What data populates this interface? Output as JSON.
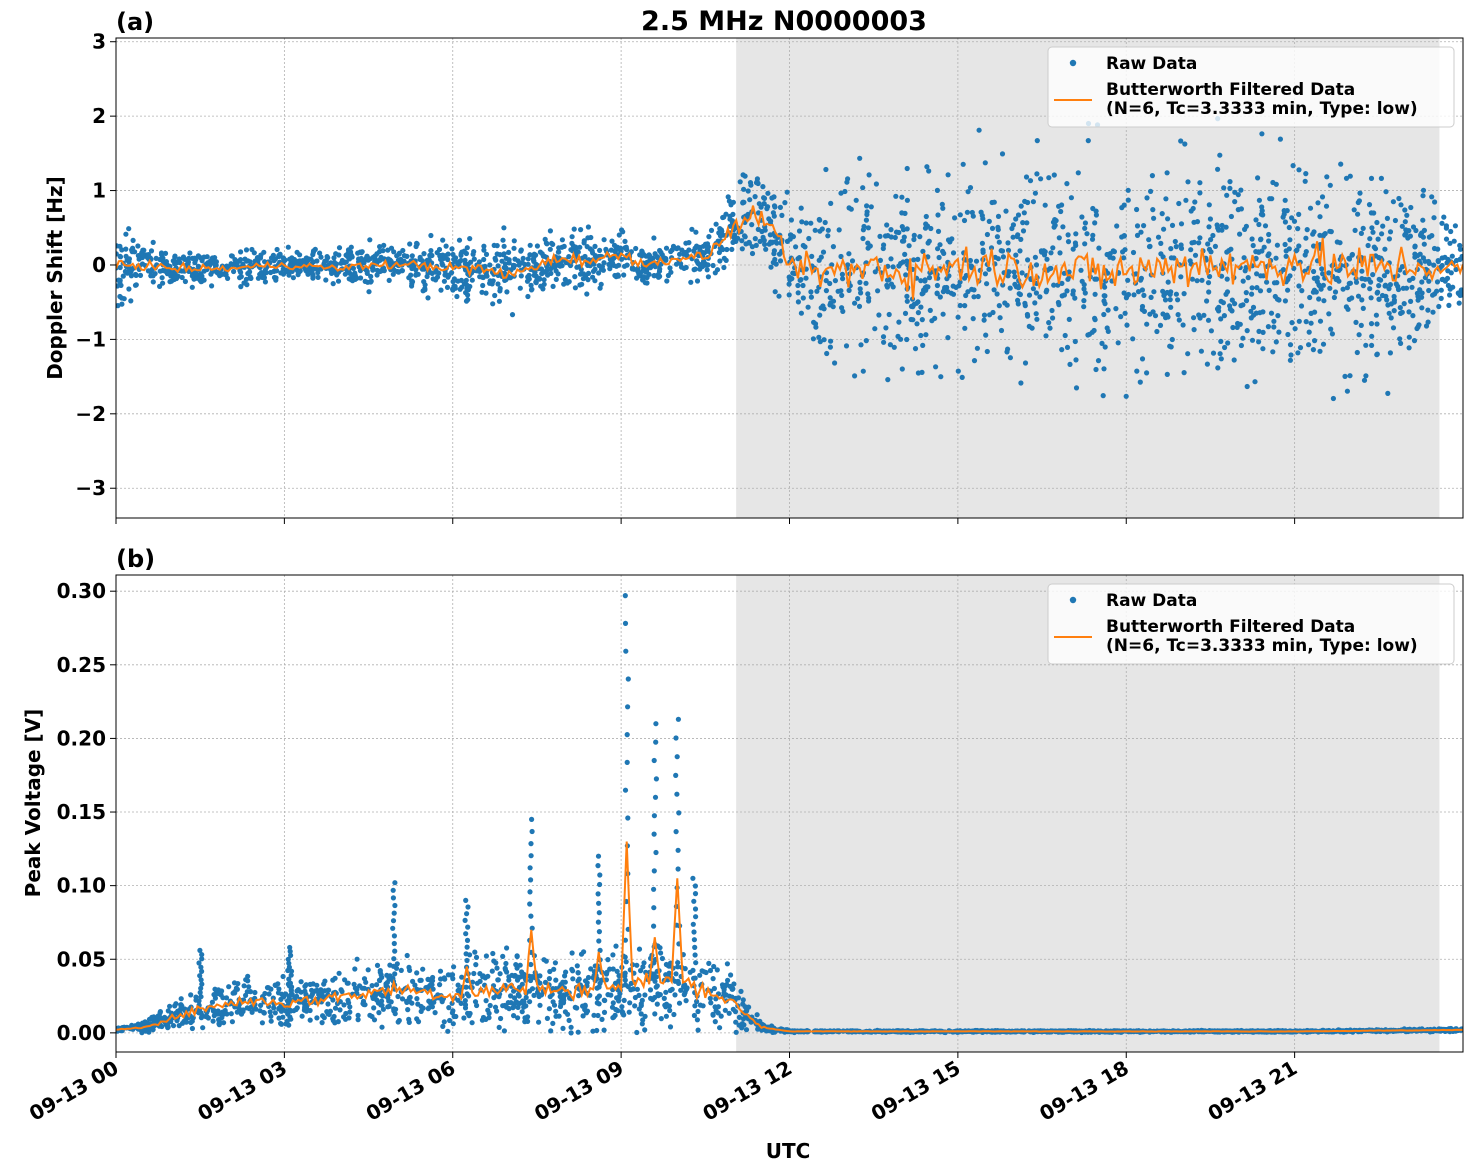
{
  "title": "2.5 MHz N0000003",
  "colors": {
    "raw": "#1f77b4",
    "filtered": "#ff7f0e",
    "shade": "#e6e6e6",
    "grid": "#b0b0b0"
  },
  "chart_data": [
    {
      "type": "scatter",
      "panel_label": "(a)",
      "ylabel": "Doppler Shift [Hz]",
      "xlabel": "",
      "xlim": [
        0,
        24
      ],
      "ylim": [
        -3.4,
        3.05
      ],
      "yticks": [
        -3,
        -2,
        -1,
        0,
        1,
        2,
        3
      ],
      "ytick_labels": [
        "−3",
        "−2",
        "−1",
        "0",
        "1",
        "2",
        "3"
      ],
      "grid": true,
      "legend_position": "top-right",
      "shaded_region_utc_hours": [
        11.05,
        23.58
      ],
      "series": [
        {
          "name": "Raw Data",
          "kind": "scatter",
          "x_utc_hours": [
            0,
            0.5,
            1,
            1.5,
            2,
            2.5,
            3,
            3.5,
            4,
            4.5,
            5,
            5.5,
            6,
            6.5,
            7,
            7.5,
            8,
            8.5,
            9,
            9.5,
            10,
            10.5,
            11,
            11.5,
            12,
            12.5,
            13,
            13.5,
            14,
            14.5,
            15,
            15.5,
            16,
            16.5,
            17,
            17.5,
            18,
            18.5,
            19,
            19.5,
            20,
            20.5,
            21,
            21.5,
            22,
            22.5,
            23,
            23.5,
            24
          ],
          "center": [
            0.0,
            0.0,
            -0.05,
            -0.05,
            -0.05,
            -0.02,
            0.0,
            -0.02,
            -0.05,
            0.0,
            0.0,
            0.0,
            -0.05,
            -0.05,
            -0.15,
            0.0,
            0.1,
            0.05,
            0.15,
            0.0,
            0.1,
            0.1,
            0.5,
            0.7,
            0.0,
            -0.1,
            -0.1,
            0.0,
            -0.1,
            -0.05,
            0.0,
            0.0,
            -0.05,
            -0.05,
            -0.1,
            -0.1,
            -0.1,
            -0.05,
            0.0,
            0.05,
            -0.05,
            0.0,
            0.05,
            0.0,
            -0.05,
            -0.05,
            0.0,
            -0.05,
            -0.05
          ],
          "spread": [
            0.5,
            0.25,
            0.2,
            0.2,
            0.2,
            0.2,
            0.2,
            0.2,
            0.2,
            0.25,
            0.2,
            0.3,
            0.3,
            0.35,
            0.4,
            0.3,
            0.35,
            0.3,
            0.35,
            0.25,
            0.25,
            0.3,
            0.45,
            0.5,
            0.6,
            0.9,
            1.3,
            1.2,
            1.2,
            1.2,
            1.2,
            1.2,
            1.1,
            1.1,
            1.2,
            1.3,
            1.2,
            1.1,
            1.3,
            1.3,
            1.3,
            1.3,
            1.3,
            1.3,
            1.3,
            1.2,
            1.2,
            0.7,
            0.6
          ]
        },
        {
          "name": "Butterworth Filtered Data\n(N=6, Tc=3.3333 min, Type: low)",
          "kind": "line",
          "x_utc_hours": [
            0,
            0.5,
            1,
            1.5,
            2,
            2.5,
            3,
            3.5,
            4,
            4.5,
            5,
            5.5,
            6,
            6.5,
            7,
            7.5,
            8,
            8.5,
            9,
            9.5,
            10,
            10.5,
            11,
            11.5,
            12,
            12.5,
            13,
            13.5,
            14,
            14.5,
            15,
            15.5,
            16,
            16.5,
            17,
            17.5,
            18,
            18.5,
            19,
            19.5,
            20,
            20.5,
            21,
            21.5,
            22,
            22.5,
            23,
            23.5,
            24
          ],
          "y": [
            0.0,
            0.0,
            -0.05,
            -0.05,
            -0.05,
            -0.02,
            0.0,
            -0.02,
            -0.05,
            0.0,
            0.0,
            0.0,
            -0.05,
            -0.05,
            -0.15,
            0.0,
            0.1,
            0.05,
            0.15,
            0.0,
            0.1,
            0.1,
            0.5,
            0.7,
            0.0,
            -0.1,
            -0.1,
            0.0,
            -0.1,
            -0.05,
            0.0,
            0.0,
            -0.05,
            -0.05,
            -0.1,
            -0.1,
            -0.1,
            -0.05,
            0.0,
            0.05,
            -0.05,
            0.0,
            0.05,
            0.0,
            -0.05,
            -0.05,
            0.0,
            -0.05,
            -0.05
          ]
        }
      ]
    },
    {
      "type": "scatter",
      "panel_label": "(b)",
      "ylabel": "Peak Voltage [V]",
      "xlabel": "UTC",
      "xlim": [
        0,
        24
      ],
      "ylim": [
        -0.013,
        0.311
      ],
      "yticks": [
        0.0,
        0.05,
        0.1,
        0.15,
        0.2,
        0.25,
        0.3
      ],
      "ytick_labels": [
        "0.00",
        "0.05",
        "0.10",
        "0.15",
        "0.20",
        "0.25",
        "0.30"
      ],
      "xticks": [
        0,
        3,
        6,
        9,
        12,
        15,
        18,
        21
      ],
      "xtick_labels": [
        "09-13 00",
        "09-13 03",
        "09-13 06",
        "09-13 09",
        "09-13 12",
        "09-13 15",
        "09-13 18",
        "09-13 21"
      ],
      "grid": true,
      "legend_position": "top-right",
      "shaded_region_utc_hours": [
        11.05,
        23.58
      ],
      "series": [
        {
          "name": "Raw Data",
          "kind": "scatter",
          "x_utc_hours": [
            0,
            0.5,
            1,
            1.5,
            2,
            2.5,
            3,
            3.5,
            4,
            4.5,
            5,
            5.5,
            6,
            6.5,
            7,
            7.5,
            8,
            8.5,
            9,
            9.5,
            10,
            10.5,
            11,
            11.5,
            12,
            13,
            15,
            18,
            21,
            24
          ],
          "center": [
            0.002,
            0.004,
            0.01,
            0.016,
            0.02,
            0.022,
            0.02,
            0.022,
            0.025,
            0.027,
            0.03,
            0.028,
            0.025,
            0.028,
            0.03,
            0.03,
            0.028,
            0.03,
            0.032,
            0.035,
            0.035,
            0.03,
            0.02,
            0.004,
            0.001,
            0.001,
            0.001,
            0.001,
            0.001,
            0.002
          ],
          "spread": [
            0.001,
            0.003,
            0.008,
            0.012,
            0.015,
            0.016,
            0.015,
            0.016,
            0.018,
            0.02,
            0.022,
            0.02,
            0.02,
            0.022,
            0.024,
            0.022,
            0.022,
            0.024,
            0.025,
            0.026,
            0.026,
            0.022,
            0.015,
            0.003,
            0.0005,
            0.0005,
            0.0005,
            0.0005,
            0.0005,
            0.001
          ],
          "spikes": [
            {
              "x": 1.5,
              "y": 0.056
            },
            {
              "x": 3.1,
              "y": 0.058
            },
            {
              "x": 4.95,
              "y": 0.102
            },
            {
              "x": 6.25,
              "y": 0.09
            },
            {
              "x": 7.4,
              "y": 0.145
            },
            {
              "x": 8.6,
              "y": 0.12
            },
            {
              "x": 9.1,
              "y": 0.297
            },
            {
              "x": 9.6,
              "y": 0.21
            },
            {
              "x": 10.0,
              "y": 0.213
            },
            {
              "x": 10.3,
              "y": 0.105
            }
          ]
        },
        {
          "name": "Butterworth Filtered Data\n(N=6, Tc=3.3333 min, Type: low)",
          "kind": "line",
          "x_utc_hours": [
            0,
            0.5,
            1,
            1.5,
            2,
            2.5,
            3,
            3.5,
            4,
            4.5,
            5,
            5.5,
            6,
            6.5,
            7,
            7.5,
            8,
            8.5,
            9,
            9.5,
            10,
            10.5,
            11,
            11.5,
            12,
            13,
            15,
            18,
            21,
            24
          ],
          "y": [
            0.002,
            0.004,
            0.01,
            0.016,
            0.02,
            0.022,
            0.02,
            0.022,
            0.025,
            0.027,
            0.03,
            0.028,
            0.025,
            0.028,
            0.03,
            0.03,
            0.028,
            0.03,
            0.032,
            0.035,
            0.035,
            0.03,
            0.02,
            0.004,
            0.001,
            0.001,
            0.001,
            0.001,
            0.001,
            0.002
          ],
          "peaks": [
            {
              "x": 6.25,
              "y": 0.045
            },
            {
              "x": 7.4,
              "y": 0.07
            },
            {
              "x": 8.6,
              "y": 0.055
            },
            {
              "x": 9.1,
              "y": 0.13
            },
            {
              "x": 9.6,
              "y": 0.065
            },
            {
              "x": 10.0,
              "y": 0.105
            }
          ]
        }
      ]
    }
  ]
}
